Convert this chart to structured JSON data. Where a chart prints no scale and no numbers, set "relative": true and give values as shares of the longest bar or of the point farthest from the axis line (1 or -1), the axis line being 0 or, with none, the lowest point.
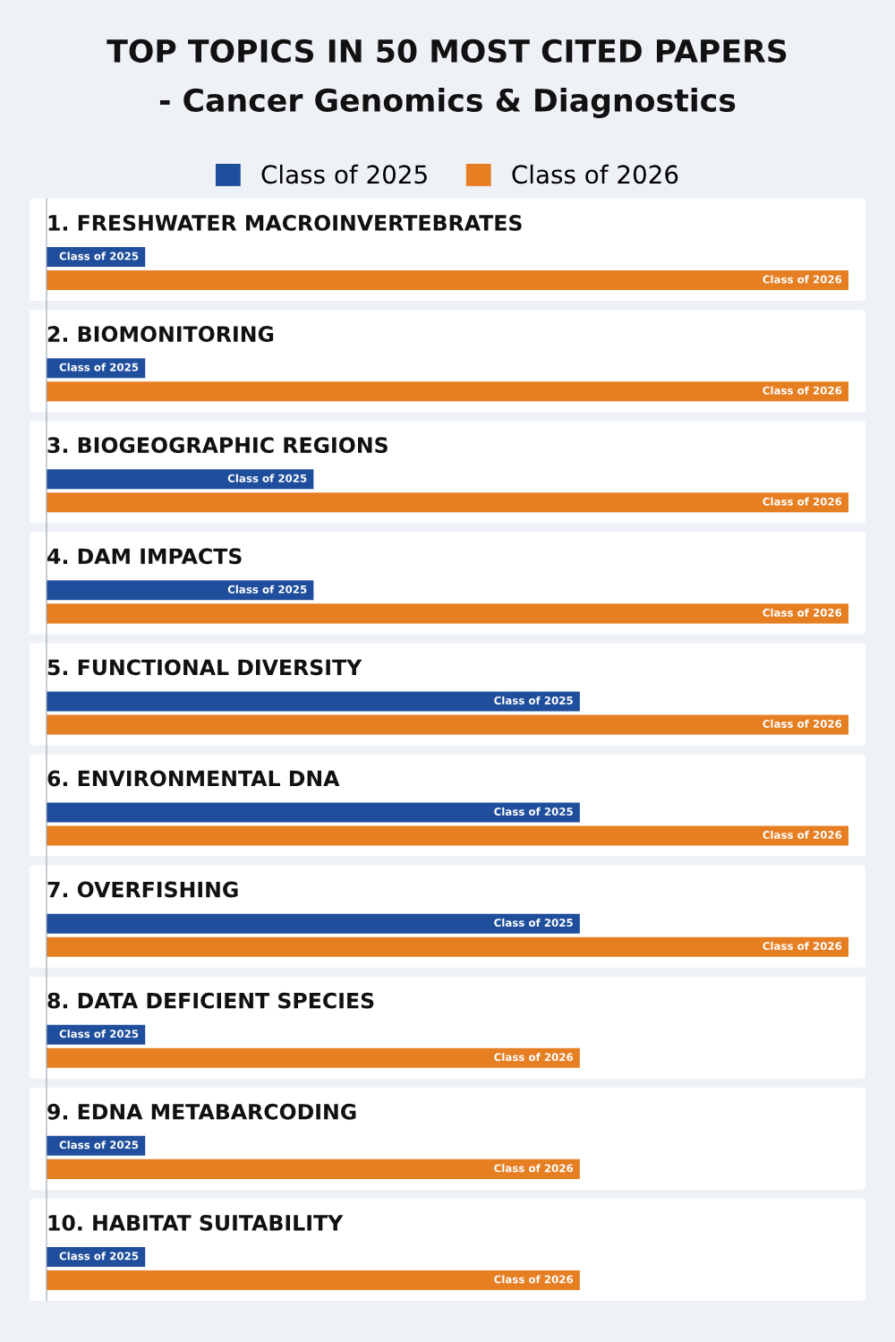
{
  "chart_data": {
    "type": "bar",
    "orientation": "horizontal",
    "relative": true,
    "legend": "top",
    "title": "TOP TOPICS IN 50 MOST CITED PAPERS",
    "subtitle": "- Cancer Genomics & Diagnostics",
    "categories": [
      "1. FRESHWATER MACROINVERTEBRATES",
      "2. BIOMONITORING",
      "3. BIOGEOGRAPHIC REGIONS",
      "4. DAM IMPACTS",
      "5. FUNCTIONAL DIVERSITY",
      "6. ENVIRONMENTAL DNA",
      "7. OVERFISHING",
      "8. DATA DEFICIENT SPECIES",
      "9. EDNA METABARCODING",
      "10. HABITAT SUITABILITY"
    ],
    "series": [
      {
        "name": "Class of 2025",
        "color": "#1f4e9c",
        "values": [
          0.123,
          0.123,
          0.333,
          0.333,
          0.665,
          0.665,
          0.665,
          0.123,
          0.123,
          0.123
        ]
      },
      {
        "name": "Class of 2026",
        "color": "#e67e22",
        "values": [
          1,
          1,
          1,
          1,
          1,
          1,
          1,
          0.665,
          0.665,
          0.665
        ]
      }
    ]
  }
}
